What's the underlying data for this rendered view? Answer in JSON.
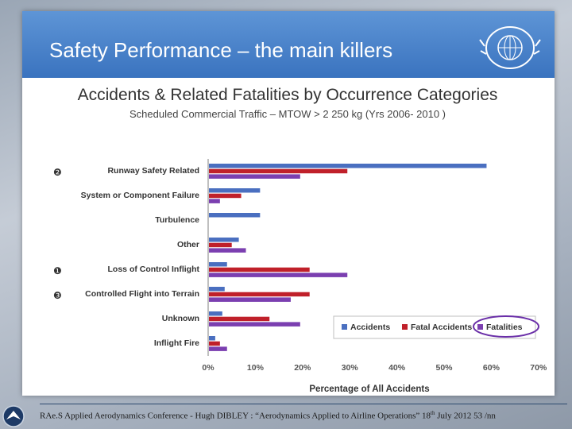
{
  "slide": {
    "header_title": "Safety Performance – the main killers"
  },
  "chart_data": {
    "type": "bar",
    "orientation": "horizontal",
    "title": "Accidents & Related Fatalities by Occurrence Categories",
    "subtitle": "Scheduled Commercial Traffic – MTOW > 2 250 kg (Yrs 2006- 2010 )",
    "xlabel": "Percentage of All Accidents",
    "ylabel": "",
    "xlim": [
      0,
      70
    ],
    "x_ticks": [
      "0%",
      "10%",
      "20%",
      "30%",
      "40%",
      "50%",
      "60%",
      "70%"
    ],
    "categories": [
      "Runway Safety Related",
      "System or Component Failure",
      "Turbulence",
      "Other",
      "Loss of Control Inflight",
      "Controlled Flight into Terrain",
      "Unknown",
      "Inflight Fire"
    ],
    "rank_markers": [
      "❷",
      "",
      "",
      "",
      "❶",
      "❸",
      "",
      ""
    ],
    "series": [
      {
        "name": "Accidents",
        "color": "#4a6fc0",
        "values": [
          59,
          11,
          11,
          6.5,
          4,
          3.5,
          3,
          1.5
        ]
      },
      {
        "name": "Fatal Accidents",
        "color": "#c0202a",
        "values": [
          29.5,
          7,
          0,
          5,
          21.5,
          21.5,
          13,
          2.5
        ]
      },
      {
        "name": "Fatalities",
        "color": "#7b3fb0",
        "values": [
          19.5,
          2.5,
          0,
          8,
          29.5,
          17.5,
          19.5,
          4
        ]
      }
    ],
    "legend_position": "bottom-right",
    "grid": false
  },
  "footer": {
    "text_part1": "RAe.S Applied Aerodynamics Conference - Hugh DIBLEY : “Aerodynamics Applied to Airline Operations” 18",
    "text_sup": "th",
    "text_part2": " July 2012 53 /nn"
  }
}
